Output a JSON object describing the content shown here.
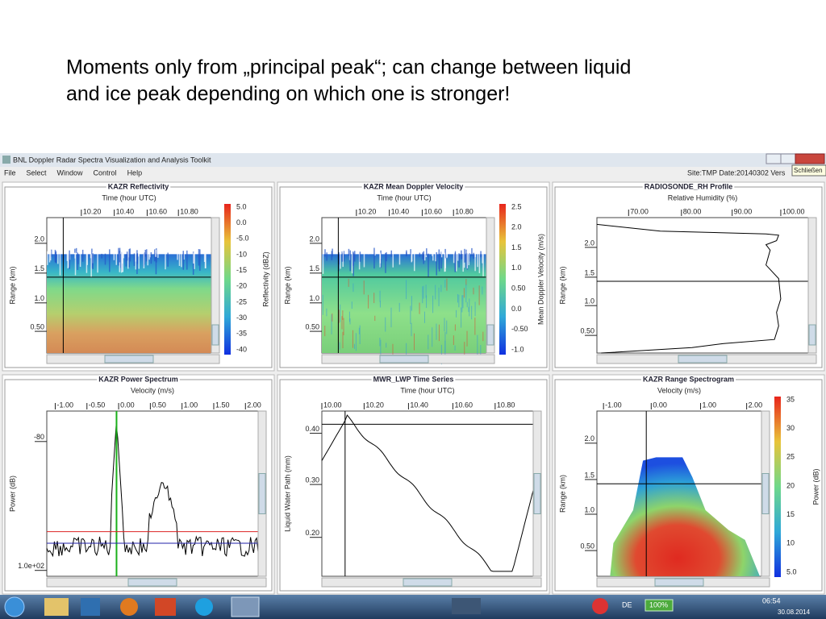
{
  "slide": {
    "lines": [
      "Moments only from „principal peak“; can change between liquid",
      "and ice peak depending on which one is stronger!"
    ]
  },
  "window": {
    "title": "BNL Doppler Radar Spectra Visualization and Analysis Toolkit",
    "menu": [
      "File",
      "Select",
      "Window",
      "Control",
      "Help"
    ],
    "status": "Site:TMP  Date:20140302  Vers",
    "tooltip": "Schließen"
  },
  "panels": [
    {
      "title": "KAZR Reflectivity",
      "x_label": "Time (hour UTC)",
      "x_ticks": [
        "10.20",
        "10.40",
        "10.60",
        "10.80"
      ],
      "y_label": "Range (km)",
      "y_ticks": [
        "2.0",
        "1.5",
        "1.0",
        "0.50"
      ],
      "colorbar_label": "Reflectivity (dBZ)",
      "colorbar_ticks": [
        "5.0",
        "0.0",
        "-5.0",
        "-10",
        "-15",
        "-20",
        "-25",
        "-30",
        "-35",
        "-40"
      ]
    },
    {
      "title": "KAZR Mean Doppler Velocity",
      "x_label": "Time (hour UTC)",
      "x_ticks": [
        "10.20",
        "10.40",
        "10.60",
        "10.80"
      ],
      "y_label": "Range (km)",
      "y_ticks": [
        "2.0",
        "1.5",
        "1.0",
        "0.50"
      ],
      "colorbar_label": "Mean Doppler Velocity (m/s)",
      "colorbar_ticks": [
        "2.5",
        "2.0",
        "1.5",
        "1.0",
        "0.50",
        "0.0",
        "-0.50",
        "-1.0"
      ]
    },
    {
      "title": "RADIOSONDE_RH Profile",
      "x_label": "Relative Humidity (%)",
      "x_ticks": [
        "70.00",
        "80.00",
        "90.00",
        "100.00"
      ],
      "y_label": "Range (km)",
      "y_ticks": [
        "2.0",
        "1.5",
        "1.0",
        "0.50"
      ]
    },
    {
      "title": "KAZR Power Spectrum",
      "x_label": "Velocity (m/s)",
      "x_ticks": [
        "-1.00",
        "-0.50",
        "0.00",
        "0.50",
        "1.00",
        "1.50",
        "2.00"
      ],
      "y_label": "Power (dB)",
      "y_ticks": [
        "-80",
        "1.0e+02"
      ]
    },
    {
      "title": "MWR_LWP Time Series",
      "x_label": "Time (hour UTC)",
      "x_ticks": [
        "10.00",
        "10.20",
        "10.40",
        "10.60",
        "10.80"
      ],
      "y_label": "Liquid Water Path (mm)",
      "y_ticks": [
        "0.40",
        "0.30",
        "0.20"
      ]
    },
    {
      "title": "KAZR Range Spectrogram",
      "x_label": "Velocity (m/s)",
      "x_ticks": [
        "-1.00",
        "0.00",
        "1.00",
        "2.00"
      ],
      "y_label": "Range (km)",
      "y_ticks": [
        "2.0",
        "1.5",
        "1.0",
        "0.50"
      ],
      "colorbar_label": "Power (dB)",
      "colorbar_ticks": [
        "35",
        "30",
        "25",
        "20",
        "15",
        "10",
        "5.0"
      ]
    }
  ],
  "taskbar": {
    "language": "DE",
    "battery": "100%",
    "time": "06:54",
    "date": "30.08.2014"
  }
}
